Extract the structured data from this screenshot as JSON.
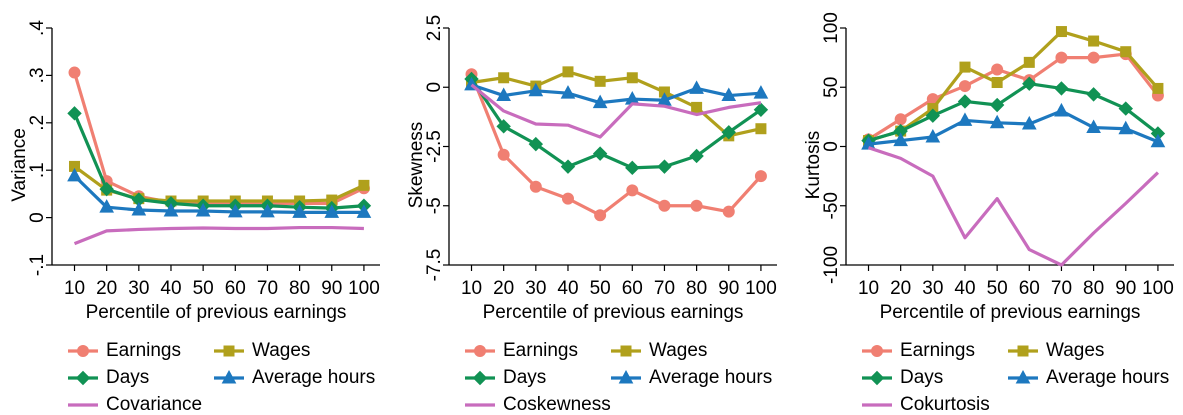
{
  "chart_data": [
    {
      "type": "line",
      "y_label": "Variance",
      "x_label": "Percentile of previous earnings",
      "x": [
        10,
        20,
        30,
        40,
        50,
        60,
        70,
        80,
        90,
        100
      ],
      "xlim": [
        3,
        105
      ],
      "xticks": [
        10,
        20,
        30,
        40,
        50,
        60,
        70,
        80,
        90,
        100
      ],
      "ylim": [
        -0.1,
        0.4
      ],
      "yticks": [
        {
          "value": -0.1,
          "label": "-.1"
        },
        0,
        {
          "value": 0.1,
          "label": ".1"
        },
        {
          "value": 0.2,
          "label": ".2"
        },
        {
          "value": 0.3,
          "label": ".3"
        },
        {
          "value": 0.4,
          "label": ".4"
        }
      ],
      "series": [
        {
          "name": "Earnings",
          "color": "#f07f72",
          "marker": "circle",
          "values": [
            0.306,
            0.077,
            0.045,
            0.032,
            0.03,
            0.03,
            0.03,
            0.03,
            0.03,
            0.062
          ]
        },
        {
          "name": "Wages",
          "color": "#b0a01c",
          "marker": "square",
          "values": [
            0.108,
            0.058,
            0.04,
            0.035,
            0.035,
            0.035,
            0.035,
            0.035,
            0.037,
            0.068
          ]
        },
        {
          "name": "Days",
          "color": "#119254",
          "marker": "diamond",
          "values": [
            0.22,
            0.06,
            0.038,
            0.03,
            0.025,
            0.025,
            0.025,
            0.022,
            0.02,
            0.025
          ]
        },
        {
          "name": "Average hours",
          "color": "#1d78bf",
          "marker": "triangle",
          "values": [
            0.088,
            0.022,
            0.016,
            0.014,
            0.014,
            0.012,
            0.012,
            0.011,
            0.011,
            0.011
          ]
        },
        {
          "name": "Covariance",
          "color": "#c86cbd",
          "marker": "none",
          "values": [
            -0.055,
            -0.028,
            -0.025,
            -0.023,
            -0.022,
            -0.023,
            -0.023,
            -0.021,
            -0.021,
            -0.023
          ]
        }
      ]
    },
    {
      "type": "line",
      "y_label": "Skewness",
      "x_label": "Percentile of previous earnings",
      "x": [
        10,
        20,
        30,
        40,
        50,
        60,
        70,
        80,
        90,
        100
      ],
      "xlim": [
        3,
        105
      ],
      "xticks": [
        10,
        20,
        30,
        40,
        50,
        60,
        70,
        80,
        90,
        100
      ],
      "ylim": [
        -7.5,
        2.5
      ],
      "yticks": [
        -7.5,
        -5,
        -2.5,
        0,
        2.5
      ],
      "series": [
        {
          "name": "Earnings",
          "color": "#f07f72",
          "marker": "circle",
          "values": [
            0.55,
            -2.85,
            -4.2,
            -4.7,
            -5.4,
            -4.35,
            -5.0,
            -5.0,
            -5.25,
            -3.75
          ]
        },
        {
          "name": "Wages",
          "color": "#b0a01c",
          "marker": "square",
          "values": [
            0.2,
            0.4,
            0.05,
            0.65,
            0.25,
            0.4,
            -0.2,
            -0.85,
            -2.05,
            -1.75
          ]
        },
        {
          "name": "Days",
          "color": "#119254",
          "marker": "diamond",
          "values": [
            0.35,
            -1.65,
            -2.4,
            -3.35,
            -2.8,
            -3.4,
            -3.35,
            -2.9,
            -1.9,
            -0.95
          ]
        },
        {
          "name": "Average hours",
          "color": "#1d78bf",
          "marker": "triangle",
          "values": [
            0.1,
            -0.35,
            -0.15,
            -0.25,
            -0.65,
            -0.5,
            -0.55,
            -0.05,
            -0.35,
            -0.25
          ]
        },
        {
          "name": "Coskewness",
          "color": "#c86cbd",
          "marker": "none",
          "values": [
            0.1,
            -1.0,
            -1.55,
            -1.6,
            -2.1,
            -0.7,
            -0.8,
            -1.15,
            -0.85,
            -0.65
          ]
        }
      ]
    },
    {
      "type": "line",
      "y_label": "Kurtosis",
      "x_label": "Percentile of previous earnings",
      "x": [
        10,
        20,
        30,
        40,
        50,
        60,
        70,
        80,
        90,
        100
      ],
      "xlim": [
        3,
        105
      ],
      "xticks": [
        10,
        20,
        30,
        40,
        50,
        60,
        70,
        80,
        90,
        100
      ],
      "ylim": [
        -100,
        100
      ],
      "yticks": [
        -100,
        -50,
        0,
        50,
        100
      ],
      "series": [
        {
          "name": "Earnings",
          "color": "#f07f72",
          "marker": "circle",
          "values": [
            6,
            23,
            40,
            51,
            65,
            56,
            75,
            75,
            78,
            43
          ]
        },
        {
          "name": "Wages",
          "color": "#b0a01c",
          "marker": "square",
          "values": [
            5,
            13,
            32,
            67,
            54,
            71,
            97,
            89,
            80,
            49
          ]
        },
        {
          "name": "Days",
          "color": "#119254",
          "marker": "diamond",
          "values": [
            5,
            13,
            26,
            38,
            35,
            53,
            49,
            44,
            32,
            11
          ]
        },
        {
          "name": "Average hours",
          "color": "#1d78bf",
          "marker": "triangle",
          "values": [
            2,
            5,
            8,
            22,
            20,
            19,
            30,
            16,
            15,
            4
          ]
        },
        {
          "name": "Cokurtosis",
          "color": "#c86cbd",
          "marker": "none",
          "values": [
            -1,
            -10,
            -25,
            -77,
            -44,
            -87,
            -100,
            -73,
            -48,
            -22
          ]
        }
      ]
    }
  ]
}
